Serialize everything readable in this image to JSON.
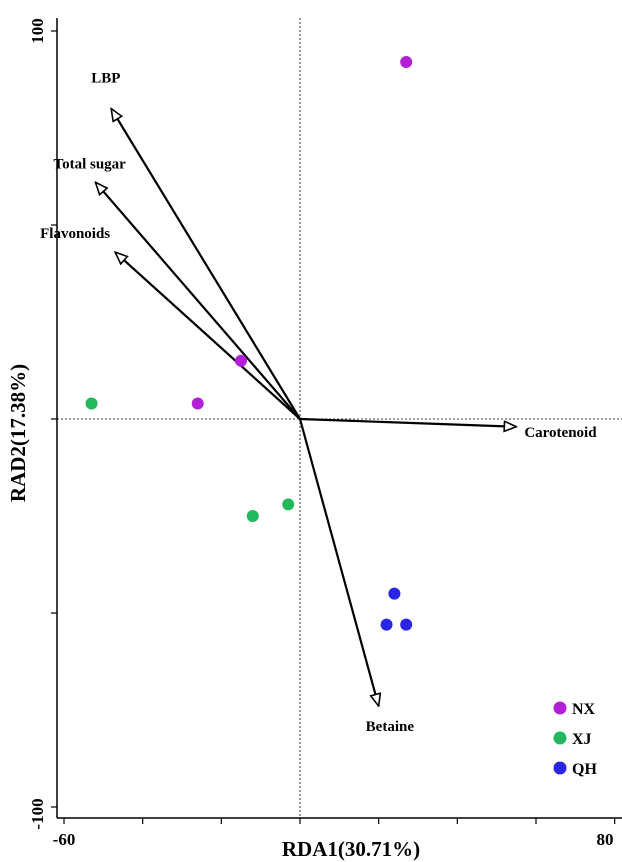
{
  "chart_data": {
    "type": "scatter",
    "title": "",
    "xlabel": "RDA1(30.71%)",
    "ylabel": "RAD2(17.38%)",
    "xlim": [
      -60,
      80
    ],
    "ylim": [
      -100,
      100
    ],
    "x_tick_labels": [
      "-60",
      "80"
    ],
    "y_tick_labels": [
      "100",
      "-100"
    ],
    "reference_lines": {
      "x": 0,
      "y": 0,
      "style": "dotted"
    },
    "legend_position": "bottom-right",
    "series": [
      {
        "name": "NX",
        "color": "#b21fd6",
        "points": [
          [
            27,
            92
          ],
          [
            -15,
            15
          ],
          [
            -26,
            4
          ]
        ]
      },
      {
        "name": "XJ",
        "color": "#22b85c",
        "points": [
          [
            -53,
            4
          ],
          [
            -12,
            -25
          ],
          [
            -3,
            -22
          ]
        ]
      },
      {
        "name": "QH",
        "color": "#2a24e6",
        "points": [
          [
            24,
            -45
          ],
          [
            22,
            -53
          ],
          [
            27,
            -53
          ]
        ]
      }
    ],
    "vectors": [
      {
        "label": "LBP",
        "x": -48,
        "y": 80
      },
      {
        "label": "Total sugar",
        "x": -52,
        "y": 61
      },
      {
        "label": "Flavonoids",
        "x": -47,
        "y": 43
      },
      {
        "label": "Carotenoid",
        "x": 55,
        "y": -2
      },
      {
        "label": "Betaine",
        "x": 20,
        "y": -74
      }
    ]
  }
}
